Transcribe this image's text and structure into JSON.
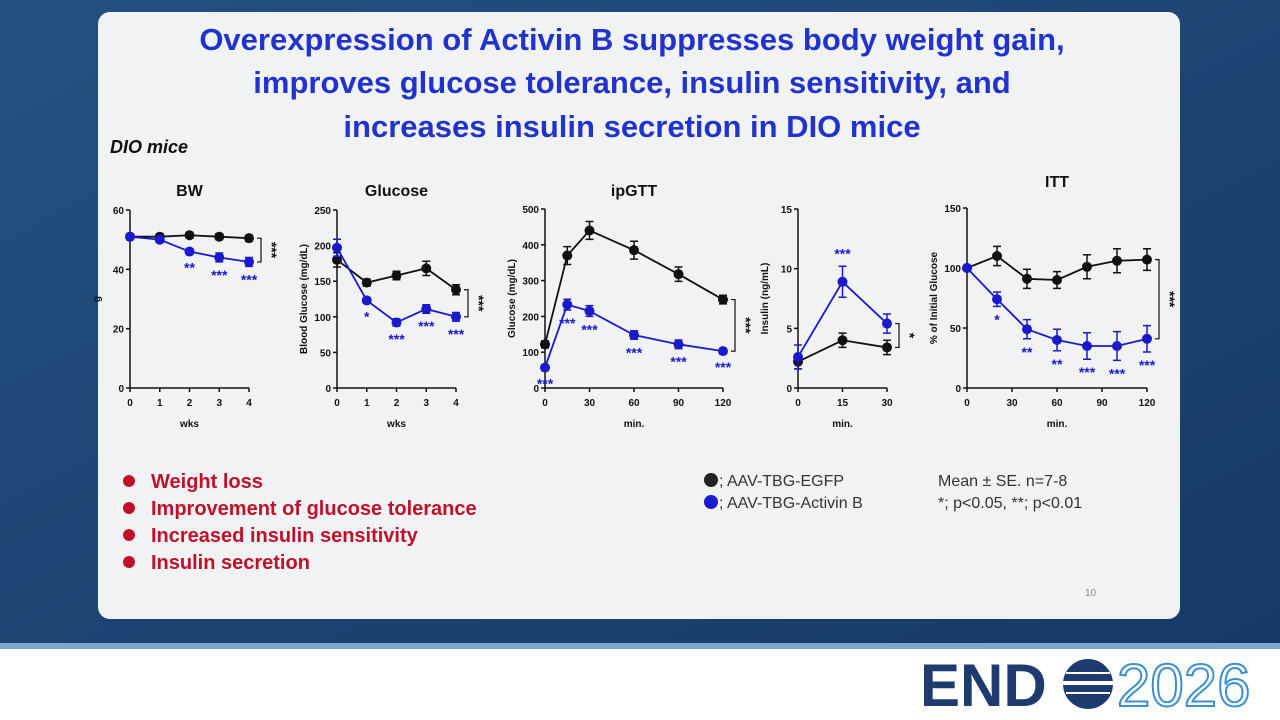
{
  "slide": {
    "title": [
      "Overexpression of Activin B suppresses body weight gain,",
      "improves glucose tolerance, insulin sensitivity, and",
      "increases insulin secretion in DIO mice"
    ],
    "subtitle": "DIO mice",
    "bullets": [
      "Weight loss",
      "Improvement of glucose tolerance",
      "Increased insulin sensitivity",
      "Insulin secretion"
    ],
    "legend": [
      {
        "name": "; AAV-TBG-EGFP",
        "color": "#222222"
      },
      {
        "name": "; AAV-TBG-Activin B",
        "color": "#1a1acc"
      }
    ],
    "notes": [
      "Mean ± SE. n=7-8",
      "*; p<0.05, **; p<0.01"
    ],
    "page_number": "10",
    "logo": {
      "left": "END",
      "right": "2026"
    }
  },
  "chart_data": [
    {
      "type": "line",
      "title": "BW",
      "y_label": "g",
      "x_label": "wks",
      "x": [
        0,
        1,
        2,
        3,
        4
      ],
      "xlim": [
        0,
        4
      ],
      "xticks": [
        0,
        1,
        2,
        3,
        4
      ],
      "ylim": [
        0,
        60
      ],
      "yticks": [
        0,
        20,
        40,
        60
      ],
      "series": [
        {
          "color": "#111111",
          "values": [
            51,
            51,
            51.5,
            51,
            50.5
          ],
          "errors": [
            1,
            1,
            1,
            1,
            1
          ]
        },
        {
          "color": "#1a1acc",
          "values": [
            51,
            50,
            46,
            44,
            42.5
          ],
          "errors": [
            1,
            1,
            1,
            1.5,
            1.5
          ],
          "significance": [
            null,
            null,
            "**",
            "***",
            "***"
          ]
        }
      ],
      "bracket_label": "***"
    },
    {
      "type": "line",
      "title": "Glucose",
      "y_label": "Blood Glucose (mg/dL)",
      "x_label": "wks",
      "x": [
        0,
        1,
        2,
        3,
        4
      ],
      "xlim": [
        0,
        4
      ],
      "xticks": [
        0,
        1,
        2,
        3,
        4
      ],
      "ylim": [
        0,
        250
      ],
      "yticks": [
        0,
        50,
        100,
        150,
        200,
        250
      ],
      "series": [
        {
          "color": "#111111",
          "values": [
            180,
            148,
            158,
            168,
            138
          ],
          "errors": [
            10,
            5,
            6,
            10,
            7
          ]
        },
        {
          "color": "#1a1acc",
          "values": [
            197,
            123,
            92,
            111,
            100
          ],
          "errors": [
            12,
            4,
            5,
            6,
            6
          ],
          "significance": [
            null,
            "*",
            "***",
            "***",
            "***"
          ]
        }
      ],
      "bracket_label": "***"
    },
    {
      "type": "line",
      "title": "ipGTT",
      "y_label": "Glucose (mg/dL)",
      "x_label": "min.",
      "x": [
        0,
        15,
        30,
        60,
        90,
        120
      ],
      "xlim": [
        0,
        120
      ],
      "xticks": [
        0,
        30,
        60,
        90,
        120
      ],
      "ylim": [
        0,
        500
      ],
      "yticks": [
        0,
        100,
        200,
        300,
        400,
        500
      ],
      "series": [
        {
          "color": "#111111",
          "values": [
            122,
            370,
            440,
            385,
            318,
            247
          ],
          "errors": [
            10,
            25,
            25,
            25,
            20,
            12
          ]
        },
        {
          "color": "#1a1acc",
          "values": [
            57,
            233,
            215,
            148,
            122,
            103
          ],
          "errors": [
            8,
            15,
            15,
            12,
            12,
            8
          ],
          "significance": [
            "***",
            "***",
            "***",
            "***",
            "***",
            "***"
          ]
        }
      ],
      "bracket_label": "***"
    },
    {
      "type": "line",
      "title": null,
      "y_label": "Insulin (ng/mL)",
      "x_label": "min.",
      "x": [
        0,
        15,
        30
      ],
      "xlim": [
        0,
        30
      ],
      "xticks": [
        0,
        15,
        30
      ],
      "ylim": [
        0,
        15
      ],
      "yticks": [
        0,
        5,
        10,
        15
      ],
      "series": [
        {
          "color": "#111111",
          "values": [
            2.2,
            4.0,
            3.4
          ],
          "errors": [
            0.6,
            0.6,
            0.6
          ]
        },
        {
          "color": "#1a1acc",
          "values": [
            2.6,
            8.9,
            5.4
          ],
          "errors": [
            1,
            1.3,
            0.8
          ],
          "significance": [
            null,
            "***",
            null
          ]
        }
      ],
      "bracket_label": "*"
    },
    {
      "type": "line",
      "title": "ITT",
      "y_label": "% of Initial Glucose",
      "x_label": "min.",
      "x": [
        0,
        20,
        40,
        60,
        80,
        100,
        120
      ],
      "xlim": [
        0,
        120
      ],
      "xticks": [
        0,
        30,
        60,
        90,
        120
      ],
      "ylim": [
        0,
        150
      ],
      "yticks": [
        0,
        50,
        100,
        150
      ],
      "series": [
        {
          "color": "#111111",
          "values": [
            100,
            110,
            91,
            90,
            101,
            106,
            107
          ],
          "errors": [
            0,
            8,
            8,
            7,
            10,
            10,
            9
          ]
        },
        {
          "color": "#1a1acc",
          "values": [
            100,
            74,
            49,
            40,
            35,
            35,
            41
          ],
          "errors": [
            0,
            6,
            8,
            9,
            11,
            12,
            11
          ],
          "significance": [
            null,
            "*",
            "**",
            "**",
            "***",
            "***",
            "***"
          ]
        }
      ],
      "bracket_label": "***"
    }
  ]
}
